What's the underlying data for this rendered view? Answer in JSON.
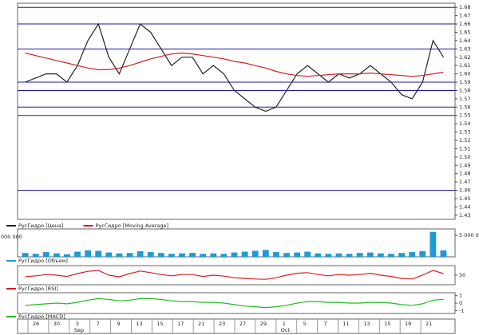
{
  "chart_data": [
    {
      "type": "line",
      "ylim": [
        1.425,
        1.685
      ],
      "yticks": [
        1.43,
        1.44,
        1.45,
        1.46,
        1.47,
        1.48,
        1.49,
        {
          "value": 1.5,
          "label": "1.50"
        },
        1.51,
        1.52,
        1.53,
        1.54,
        1.55,
        1.56,
        1.57,
        1.58,
        1.59,
        {
          "value": 1.6,
          "label": "1.60"
        },
        1.61,
        1.62,
        1.63,
        1.64,
        1.65,
        1.66,
        1.67,
        1.68
      ],
      "levels": [
        1.68,
        1.66,
        1.63,
        1.59,
        1.58,
        1.56,
        1.55,
        1.46
      ],
      "level_color": "#1a1aa8",
      "series": [
        {
          "name": "РусГидро [Цена]",
          "color": "#222",
          "values": [
            1.59,
            1.595,
            1.6,
            1.6,
            1.59,
            1.61,
            1.64,
            1.66,
            1.62,
            1.6,
            1.63,
            1.66,
            1.65,
            1.63,
            1.61,
            1.62,
            1.62,
            1.6,
            1.61,
            1.6,
            1.58,
            1.57,
            1.56,
            1.555,
            1.56,
            1.58,
            1.6,
            1.61,
            1.6,
            1.59,
            1.6,
            1.595,
            1.6,
            1.61,
            1.6,
            1.59,
            1.575,
            1.57,
            1.59,
            1.64,
            1.62
          ]
        },
        {
          "name": "РусГидро [Moving Average]",
          "color": "#d42020",
          "values": [
            1.625,
            1.622,
            1.619,
            1.616,
            1.613,
            1.61,
            1.607,
            1.605,
            1.605,
            1.607,
            1.61,
            1.614,
            1.618,
            1.621,
            1.624,
            1.625,
            1.624,
            1.622,
            1.62,
            1.618,
            1.615,
            1.613,
            1.61,
            1.607,
            1.603,
            1.6,
            1.598,
            1.597,
            1.598,
            1.599,
            1.6,
            1.6,
            1.6,
            1.601,
            1.6,
            1.599,
            1.598,
            1.597,
            1.598,
            1.6,
            1.602
          ]
        }
      ]
    },
    {
      "type": "bar",
      "ylim": [
        0,
        6500000
      ],
      "yticks": [
        {
          "value": 5000000,
          "label": "5 000 000"
        }
      ],
      "left_label": "000 000",
      "series": [
        {
          "name": "РусГидро [Объем]",
          "color": "#1e9ad6",
          "values": [
            900000,
            700000,
            1100000,
            800000,
            600000,
            1200000,
            1500000,
            1400000,
            1000000,
            800000,
            900000,
            1300000,
            1100000,
            900000,
            700000,
            800000,
            900000,
            700000,
            800000,
            700000,
            1000000,
            1200000,
            1400000,
            1600000,
            1100000,
            900000,
            1000000,
            1200000,
            800000,
            700000,
            800000,
            700000,
            900000,
            1000000,
            800000,
            700000,
            900000,
            1100000,
            1300000,
            5800000,
            1500000
          ]
        }
      ]
    },
    {
      "type": "line",
      "ylim": [
        20,
        80
      ],
      "yticks": [
        50
      ],
      "series": [
        {
          "name": "РусГидро [RSI]",
          "color": "#d42020",
          "values": [
            45,
            48,
            52,
            50,
            46,
            55,
            62,
            65,
            50,
            45,
            55,
            63,
            58,
            52,
            48,
            52,
            52,
            46,
            50,
            47,
            42,
            40,
            38,
            37,
            42,
            50,
            56,
            58,
            52,
            48,
            52,
            50,
            52,
            56,
            50,
            46,
            40,
            38,
            50,
            65,
            55
          ]
        }
      ]
    },
    {
      "type": "line",
      "ylim": [
        -1.4,
        1.4
      ],
      "yticks": [
        1,
        0,
        -1
      ],
      "series": [
        {
          "name": "РусГидро [MACD]",
          "color": "#22bb22",
          "values": [
            -0.3,
            -0.2,
            -0.1,
            0,
            -0.1,
            0.1,
            0.4,
            0.6,
            0.5,
            0.3,
            0.4,
            0.6,
            0.6,
            0.5,
            0.3,
            0.2,
            0.2,
            0.1,
            0.1,
            0,
            -0.2,
            -0.4,
            -0.5,
            -0.6,
            -0.5,
            -0.3,
            0,
            0.2,
            0.2,
            0.1,
            0.1,
            0,
            0,
            0.1,
            0.1,
            0,
            -0.2,
            -0.3,
            -0.1,
            0.4,
            0.5
          ]
        }
      ]
    }
  ],
  "x_axis": {
    "labels": [
      "26",
      "30",
      "3",
      "7",
      "9",
      "13",
      "15",
      "17",
      "21",
      "23",
      "27",
      "29",
      "1",
      "5",
      "7",
      "11",
      "13",
      "15",
      "19",
      "21"
    ],
    "months": [
      "Sep",
      "Oct"
    ]
  }
}
